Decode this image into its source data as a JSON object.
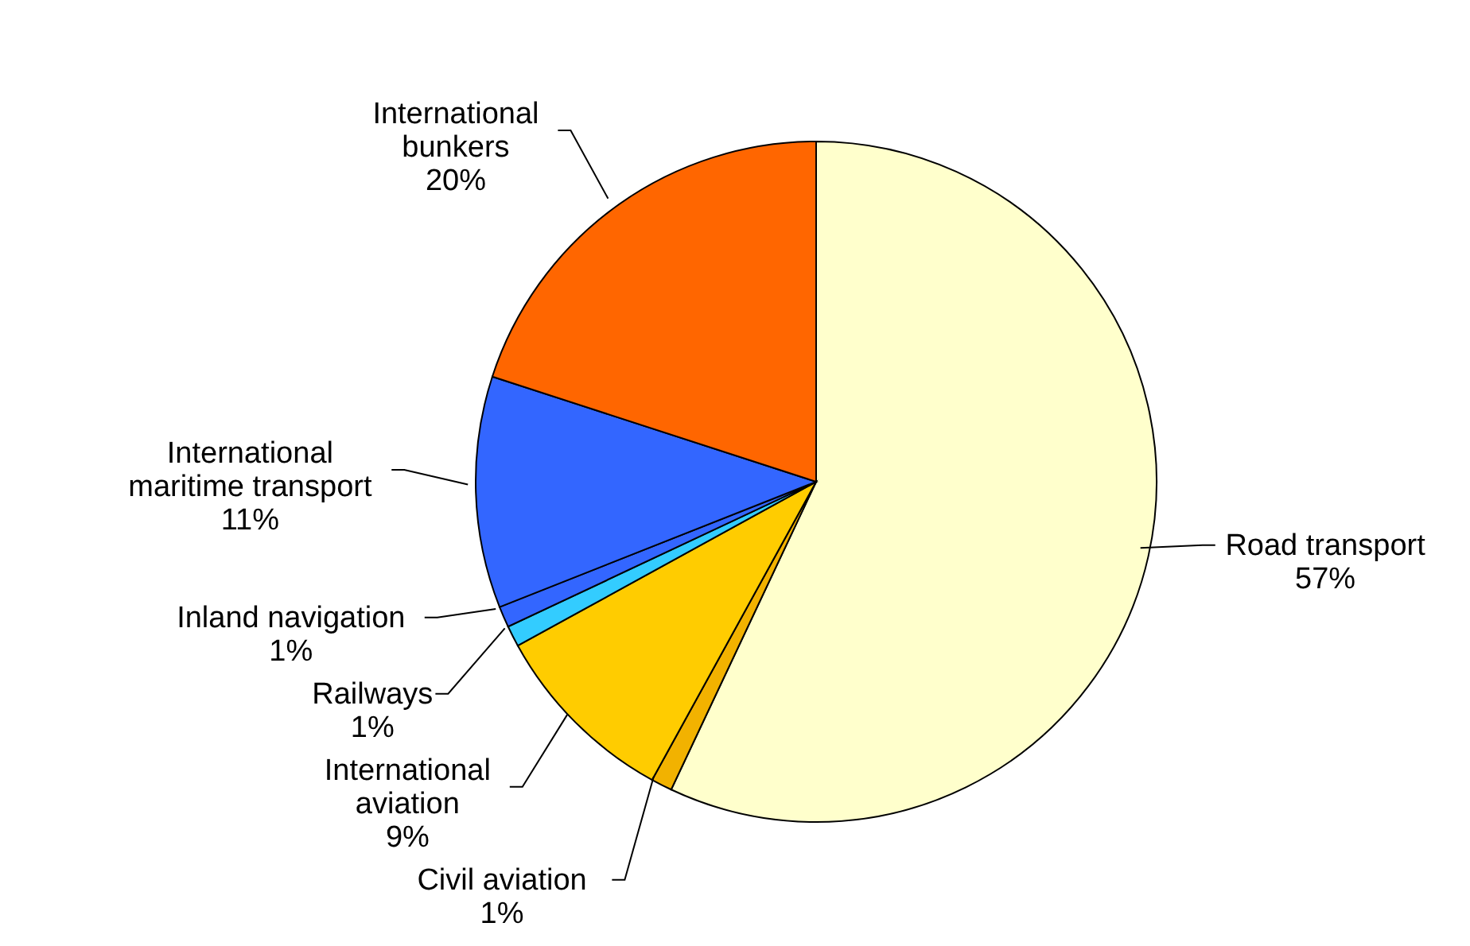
{
  "chart_data": {
    "type": "pie",
    "categories": [
      "Road transport",
      "Civil aviation",
      "International aviation",
      "Railways",
      "Inland navigation",
      "International maritime transport",
      "International bunkers"
    ],
    "values": [
      57,
      1,
      9,
      1,
      1,
      11,
      20
    ],
    "colors": [
      "#ffffcc",
      "#f2b200",
      "#ffcc00",
      "#33ccff",
      "#3366ff",
      "#3366ff",
      "#ff6600"
    ],
    "value_labels": [
      "57%",
      "1%",
      "9%",
      "1%",
      "1%",
      "11%",
      "20%"
    ],
    "legend": false
  }
}
